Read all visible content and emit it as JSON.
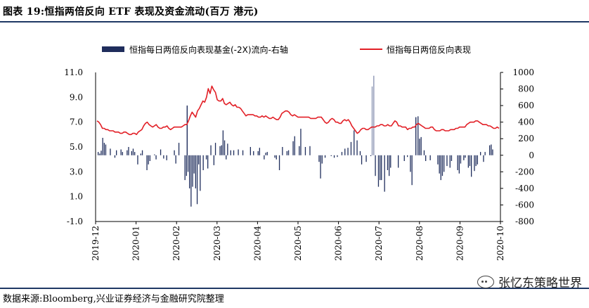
{
  "figure": {
    "title": "图表 19:恒指两倍反向 ETF 表现及资金流动(百万 港元)",
    "source": "数据来源:Bloomberg,兴业证券经济与金融研究院整理",
    "watermark": "张忆东策略世界",
    "watermark_icon": "wechat-icon"
  },
  "chart_data": {
    "type": "bar+line",
    "title": "",
    "series": [
      {
        "name": "恒指每日两倍反向表现基金(-2X)流向-右轴",
        "type": "bar",
        "axis": "right",
        "color": "#1f2d5c",
        "values": [
          40,
          20,
          55,
          210,
          150,
          130,
          0,
          0,
          80,
          0,
          0,
          -30,
          60,
          0,
          0,
          70,
          40,
          0,
          0,
          60,
          100,
          0,
          50,
          80,
          40,
          0,
          -110,
          0,
          20,
          60,
          0,
          0,
          -180,
          -110,
          -70,
          0,
          0,
          10,
          -50,
          0,
          0,
          70,
          0,
          -40,
          0,
          -60,
          0,
          0,
          0,
          0,
          60,
          -100,
          0,
          150,
          0,
          0,
          0,
          -300,
          -250,
          -200,
          -400,
          -620,
          -380,
          -220,
          -400,
          -590,
          -110,
          -430,
          0,
          -180,
          0,
          -50,
          -160,
          0,
          120,
          0,
          -120,
          150,
          0,
          0,
          110,
          120,
          300,
          180,
          -50,
          140,
          0,
          60,
          0,
          60,
          0,
          0,
          70,
          0,
          0,
          60,
          0,
          0,
          0,
          0,
          100,
          0,
          50,
          0,
          0,
          50,
          90,
          0,
          0,
          -50,
          30,
          40,
          0,
          0,
          0,
          0,
          -30,
          -50,
          0,
          -180,
          0,
          100,
          0,
          0,
          50,
          60,
          0,
          0,
          170,
          230,
          0,
          0,
          110,
          320,
          0,
          0,
          100,
          0,
          0,
          110,
          0,
          0,
          0,
          0,
          0,
          -80,
          -280,
          -100,
          0,
          -30,
          0,
          0,
          0,
          -10,
          0,
          -30,
          0,
          -20,
          0,
          0,
          40,
          0,
          80,
          0,
          90,
          0,
          160,
          0,
          300,
          0,
          180,
          0,
          50,
          -110,
          0,
          0,
          -80,
          0,
          0,
          -10,
          0,
          0,
          -250,
          0,
          -380,
          -300,
          -300,
          0,
          -440,
          0,
          -180,
          -250,
          -150,
          0,
          0,
          0,
          0,
          -150,
          0,
          0,
          0,
          -70,
          0,
          -20,
          0,
          -200,
          -360,
          0,
          0,
          0,
          470,
          200,
          220,
          0,
          60,
          -70,
          0,
          0,
          -60,
          0,
          0,
          0,
          0,
          -110,
          -220,
          -300,
          -250,
          -200,
          0,
          -130,
          0,
          -150,
          -70,
          0,
          0,
          0,
          -180,
          -220,
          -100,
          0,
          -60,
          -30,
          0,
          -150,
          -130,
          -260,
          0,
          -190,
          -130,
          -110,
          0,
          40,
          0,
          -80,
          40,
          0,
          0,
          120,
          130,
          70,
          0,
          0,
          0
        ],
        "extra_bars": [
          {
            "date": "2020-02-03",
            "value": 600
          },
          {
            "date": "2020-07-06",
            "value": 960
          },
          {
            "date": "2020-07-06b",
            "value": 830
          },
          {
            "date": "2020-08-05",
            "value": 460
          }
        ]
      },
      {
        "name": "恒指每日两倍反向表现",
        "type": "line",
        "axis": "left",
        "color": "#e21f26",
        "values": [
          7.1,
          7.0,
          6.8,
          6.5,
          6.5,
          6.4,
          6.4,
          6.3,
          6.3,
          6.3,
          6.2,
          6.2,
          6.2,
          6.1,
          6.1,
          6.2,
          6.2,
          6.1,
          6.0,
          6.0,
          6.1,
          6.1,
          6.0,
          6.2,
          6.3,
          6.4,
          6.7,
          6.9,
          7.0,
          6.8,
          6.7,
          6.6,
          6.7,
          6.8,
          6.6,
          6.5,
          6.5,
          6.6,
          6.6,
          6.7,
          6.5,
          6.4,
          6.5,
          6.6,
          6.6,
          6.6,
          6.6,
          6.6,
          6.7,
          6.8,
          6.8,
          7.1,
          7.5,
          7.8,
          7.6,
          7.4,
          7.9,
          8.1,
          8.4,
          8.7,
          8.6,
          9.0,
          9.7,
          9.3,
          9.9,
          9.6,
          9.4,
          8.8,
          8.7,
          8.7,
          8.9,
          8.5,
          8.4,
          8.5,
          8.6,
          8.4,
          8.3,
          8.4,
          8.2,
          8.2,
          8.1,
          7.9,
          7.7,
          7.5,
          7.6,
          7.6,
          7.6,
          7.6,
          7.5,
          7.5,
          7.4,
          7.4,
          7.5,
          7.4,
          7.5,
          7.4,
          7.3,
          7.3,
          7.4,
          7.3,
          7.2,
          7.2,
          7.4,
          7.7,
          7.8,
          7.9,
          7.9,
          7.8,
          7.6,
          7.5,
          7.6,
          7.5,
          7.4,
          7.4,
          7.4,
          7.4,
          7.4,
          7.4,
          7.4,
          7.3,
          7.3,
          7.3,
          7.3,
          7.4,
          7.4,
          7.4,
          7.2,
          7.0,
          6.9,
          7.0,
          7.2,
          7.3,
          7.2,
          7.0,
          7.0,
          6.9,
          6.9,
          7.1,
          7.2,
          7.1,
          7.2,
          7.0,
          6.7,
          6.5,
          6.3,
          6.1,
          6.2,
          6.4,
          6.5,
          6.5,
          6.4,
          6.4,
          6.5,
          6.6,
          6.6,
          6.6,
          6.7,
          6.7,
          6.8,
          6.8,
          6.7,
          6.7,
          6.8,
          6.7,
          6.7,
          6.9,
          7.1,
          7.0,
          6.7,
          6.7,
          6.6,
          6.6,
          6.6,
          6.4,
          6.5,
          6.5,
          6.6,
          6.6,
          6.8,
          6.9,
          6.8,
          6.7,
          6.6,
          6.5,
          6.5,
          6.5,
          6.6,
          6.6,
          6.4,
          6.3,
          6.3,
          6.3,
          6.4,
          6.4,
          6.3,
          6.3,
          6.3,
          6.4,
          6.4,
          6.4,
          6.5,
          6.5,
          6.6,
          6.6,
          6.6,
          6.6,
          6.8,
          6.9,
          7.0,
          7.0,
          7.0,
          7.1,
          7.1,
          7.0,
          6.9,
          6.8,
          6.8,
          6.8,
          6.7,
          6.7,
          6.6,
          6.5,
          6.5,
          6.6,
          6.5
        ]
      }
    ],
    "x_labels": [
      "2019-12",
      "2020-01",
      "2020-02",
      "2020-03",
      "2020-04",
      "2020-05",
      "2020-06",
      "2020-07",
      "2020-08",
      "2020-09",
      "2020-10"
    ],
    "y_left": {
      "ticks": [
        "11.0",
        "9.0",
        "7.0",
        "5.0",
        "3.0",
        "1.0",
        "-1.0"
      ],
      "range": [
        -1,
        11
      ]
    },
    "y_right": {
      "ticks": [
        "1000",
        "800",
        "600",
        "400",
        "200",
        "0",
        "-200",
        "-400",
        "-600",
        "-800"
      ],
      "range": [
        -800,
        1000
      ]
    },
    "grid": false,
    "legend_position": "top"
  }
}
